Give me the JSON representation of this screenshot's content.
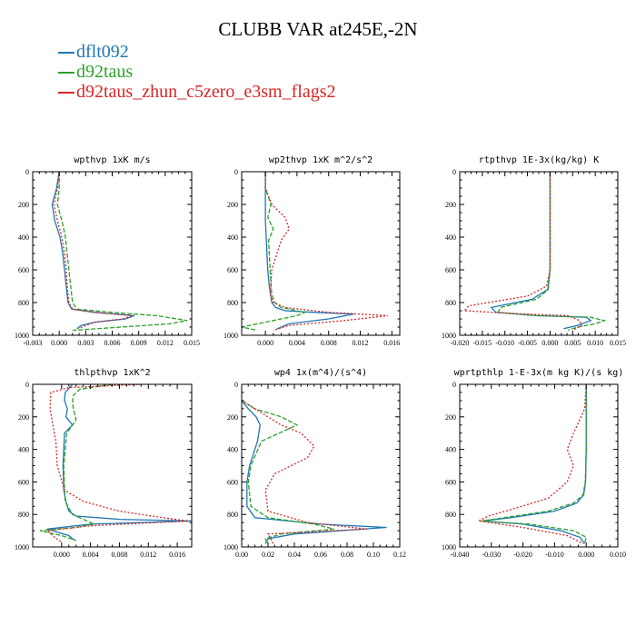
{
  "title": "CLUBB VAR at245E,-2N",
  "legend": [
    {
      "name": "dflt092",
      "color": "#1f77b4"
    },
    {
      "name": "d92taus",
      "color": "#2ca02c"
    },
    {
      "name": "d92taus_zhun_c5zero_e3sm_flags2",
      "color": "#d62728"
    }
  ],
  "series_styles": [
    {
      "name": "dflt092",
      "color": "#1f77b4",
      "dash": "solid"
    },
    {
      "name": "d92taus",
      "color": "#2ca02c",
      "dash": "dashed"
    },
    {
      "name": "d92taus_zhun_c5zero_e3sm_flags2",
      "color": "#d62728",
      "dash": "dotted"
    }
  ],
  "chart_data": [
    {
      "type": "line",
      "title": "wpthvp  1xK m/s",
      "xlim": [
        -0.003,
        0.015
      ],
      "xticks": [
        -0.003,
        0.0,
        0.003,
        0.006,
        0.009,
        0.012,
        0.015
      ],
      "xtick_labels": [
        "-0.003",
        "0.000",
        "0.003",
        "0.006",
        "0.009",
        "0.012",
        "0.015"
      ],
      "ylim": [
        0,
        1000
      ],
      "yticks": [
        0,
        200,
        400,
        600,
        800,
        1000
      ],
      "ytick_labels": [
        "0",
        "200",
        "400",
        "600",
        "800",
        "1000"
      ],
      "series": [
        {
          "x": [
            0.0,
            -0.0003,
            -0.0008,
            -0.0005,
            0.0001,
            0.0004,
            0.0006,
            0.0008,
            0.001,
            0.0014,
            0.004,
            0.0085,
            0.0075,
            0.004,
            0.0025,
            0.002
          ],
          "y": [
            0,
            100,
            200,
            300,
            400,
            500,
            600,
            700,
            800,
            840,
            860,
            880,
            900,
            920,
            940,
            960
          ]
        },
        {
          "x": [
            0.0,
            0.0,
            -0.0002,
            0.0003,
            0.0007,
            0.0009,
            0.0011,
            0.0013,
            0.0015,
            0.002,
            0.006,
            0.011,
            0.0145,
            0.0125,
            0.007,
            0.0015
          ],
          "y": [
            0,
            100,
            200,
            300,
            400,
            500,
            600,
            700,
            800,
            840,
            860,
            880,
            910,
            930,
            950,
            970
          ]
        },
        {
          "x": [
            0.0,
            -0.0002,
            -0.0006,
            -0.0002,
            0.0003,
            0.0006,
            0.0008,
            0.0009,
            0.0011,
            0.0015,
            0.004,
            0.0082,
            0.0072,
            0.004,
            0.003,
            0.0022
          ],
          "y": [
            0,
            100,
            200,
            300,
            400,
            500,
            600,
            700,
            800,
            840,
            860,
            880,
            900,
            920,
            940,
            960
          ]
        }
      ]
    },
    {
      "type": "line",
      "title": "wp2thvp  1xK m^2/s^2",
      "xlim": [
        -0.003,
        0.017
      ],
      "xticks": [
        0.0,
        0.004,
        0.008,
        0.012,
        0.016
      ],
      "xtick_labels": [
        "0.000",
        "0.004",
        "0.008",
        "0.012",
        "0.016"
      ],
      "ylim": [
        0,
        1000
      ],
      "yticks": [
        0,
        200,
        400,
        600,
        800,
        1000
      ],
      "ytick_labels": [
        "0",
        "200",
        "400",
        "600",
        "800",
        "1000"
      ],
      "series": [
        {
          "x": [
            0.0,
            0.0,
            0.0,
            0.0001,
            0.0002,
            0.0003,
            0.0005,
            0.0008,
            0.0013,
            0.0025,
            0.0062,
            0.0112,
            0.008,
            0.003,
            0.0015
          ],
          "y": [
            0,
            100,
            300,
            400,
            500,
            600,
            700,
            800,
            830,
            850,
            860,
            870,
            900,
            930,
            960
          ]
        },
        {
          "x": [
            0.0,
            0.0,
            0.0007,
            0.0003,
            0.001,
            0.0004,
            0.0006,
            0.0008,
            0.0012,
            0.002,
            0.005,
            0.004,
            0.0,
            -0.003,
            -0.001
          ],
          "y": [
            0,
            100,
            200,
            280,
            350,
            420,
            600,
            750,
            800,
            830,
            860,
            880,
            920,
            950,
            970
          ]
        },
        {
          "x": [
            0.0,
            0.0,
            0.0008,
            0.0025,
            0.003,
            0.002,
            0.0008,
            0.0006,
            0.001,
            0.0025,
            0.008,
            0.0155,
            0.01,
            0.003,
            0.001
          ],
          "y": [
            0,
            100,
            200,
            280,
            350,
            420,
            600,
            750,
            800,
            830,
            860,
            880,
            910,
            940,
            970
          ]
        }
      ]
    },
    {
      "type": "line",
      "title": "rtpthvp  1E-3x(kg/kg) K",
      "xlim": [
        -0.02,
        0.015
      ],
      "xticks": [
        -0.02,
        -0.015,
        -0.01,
        -0.005,
        0.0,
        0.005,
        0.01,
        0.015
      ],
      "xtick_labels": [
        "-0.020",
        "-0.015",
        "-0.010",
        "-0.005",
        "0.000",
        "0.005",
        "0.010",
        "0.015"
      ],
      "ylim": [
        0,
        1000
      ],
      "yticks": [
        0,
        200,
        400,
        600,
        800,
        1000
      ],
      "ytick_labels": [
        "0",
        "200",
        "400",
        "600",
        "800",
        "1000"
      ],
      "series": [
        {
          "x": [
            0.0,
            0.0,
            0.0,
            -0.0005,
            -0.004,
            -0.013,
            -0.012,
            -0.003,
            0.008,
            0.009,
            0.006,
            0.003
          ],
          "y": [
            0,
            200,
            600,
            720,
            780,
            830,
            860,
            880,
            890,
            910,
            940,
            960
          ]
        },
        {
          "x": [
            0.0,
            0.0,
            0.0,
            -0.0004,
            -0.003,
            -0.011,
            -0.0115,
            -0.003,
            0.009,
            0.012,
            0.01,
            0.006,
            0.004
          ],
          "y": [
            0,
            200,
            600,
            720,
            780,
            830,
            860,
            880,
            890,
            910,
            930,
            950,
            970
          ]
        },
        {
          "x": [
            0.0,
            0.0,
            0.0,
            -0.0008,
            -0.005,
            -0.018,
            -0.019,
            -0.006,
            0.004,
            0.0065,
            0.007,
            0.005
          ],
          "y": [
            0,
            200,
            600,
            700,
            760,
            820,
            850,
            870,
            880,
            910,
            940,
            970
          ]
        }
      ]
    },
    {
      "type": "line",
      "title": "thlpthvp  1xK^2",
      "xlim": [
        -0.004,
        0.018
      ],
      "xticks": [
        0.0,
        0.004,
        0.008,
        0.012,
        0.016
      ],
      "xtick_labels": [
        "0.000",
        "0.004",
        "0.008",
        "0.012",
        "0.016"
      ],
      "ylim": [
        0,
        1000
      ],
      "yticks": [
        0,
        200,
        400,
        600,
        800,
        1000
      ],
      "ytick_labels": [
        "0",
        "200",
        "400",
        "600",
        "800",
        "1000"
      ],
      "series": [
        {
          "x": [
            0.0015,
            0.0005,
            0.0004,
            0.0008,
            0.0006,
            0.0015,
            0.0004,
            0.0002,
            0.0003,
            0.0006,
            0.001,
            0.002,
            0.008,
            0.018,
            0.004,
            -0.002,
            0.001,
            0.0018
          ],
          "y": [
            0,
            50,
            100,
            150,
            200,
            250,
            300,
            500,
            650,
            720,
            780,
            810,
            830,
            840,
            860,
            890,
            930,
            960
          ]
        },
        {
          "x": [
            0.007,
            0.0025,
            0.0016,
            0.0015,
            0.0018,
            0.002,
            0.0007,
            0.0003,
            0.0004,
            0.0005,
            0.0015,
            0.0045,
            0.002,
            -0.003,
            0.0,
            0.002
          ],
          "y": [
            0,
            30,
            70,
            120,
            180,
            220,
            300,
            500,
            650,
            720,
            800,
            860,
            880,
            900,
            930,
            960
          ]
        },
        {
          "x": [
            0.011,
            0.001,
            -0.0015,
            -0.0016,
            -0.0012,
            -0.0008,
            -0.0006,
            0.0004,
            0.003,
            0.008,
            0.014,
            0.0175,
            0.004,
            -0.002,
            -0.001,
            0.0
          ],
          "y": [
            0,
            20,
            50,
            150,
            250,
            350,
            500,
            650,
            720,
            780,
            820,
            840,
            870,
            900,
            940,
            970
          ]
        }
      ]
    },
    {
      "type": "line",
      "title": "wp4  1x(m^4)/(s^4)",
      "xlim": [
        0.0,
        0.12
      ],
      "xticks": [
        0.0,
        0.02,
        0.04,
        0.06,
        0.08,
        0.1,
        0.12
      ],
      "xtick_labels": [
        "0.00",
        "0.02",
        "0.04",
        "0.06",
        "0.08",
        "0.10",
        "0.12"
      ],
      "ylim": [
        0,
        1000
      ],
      "yticks": [
        0,
        200,
        400,
        600,
        800,
        1000
      ],
      "ytick_labels": [
        "0",
        "200",
        "400",
        "600",
        "800",
        "1000"
      ],
      "series": [
        {
          "x": [
            0.0,
            0.005,
            0.011,
            0.014,
            0.012,
            0.006,
            0.004,
            0.004,
            0.01,
            0.06,
            0.11,
            0.04,
            0.02,
            0.018
          ],
          "y": [
            100,
            150,
            200,
            250,
            350,
            500,
            600,
            750,
            820,
            860,
            880,
            920,
            950,
            980
          ]
        },
        {
          "x": [
            0.0,
            0.01,
            0.03,
            0.042,
            0.015,
            0.007,
            0.005,
            0.007,
            0.02,
            0.055,
            0.07,
            0.03,
            0.018,
            0.02
          ],
          "y": [
            100,
            150,
            200,
            250,
            350,
            500,
            600,
            750,
            820,
            860,
            890,
            920,
            950,
            980
          ]
        },
        {
          "x": [
            0.0,
            0.01,
            0.02,
            0.03,
            0.045,
            0.055,
            0.05,
            0.025,
            0.018,
            0.02,
            0.05,
            0.095,
            0.02,
            0.022,
            0.024
          ],
          "y": [
            100,
            150,
            200,
            250,
            300,
            380,
            450,
            550,
            650,
            780,
            850,
            890,
            920,
            950,
            980
          ]
        }
      ]
    },
    {
      "type": "line",
      "title": "wprtpthlp  1-E-3x(m kg K)/(s kg)",
      "xlim": [
        -0.04,
        0.01
      ],
      "xticks": [
        -0.04,
        -0.03,
        -0.02,
        -0.01,
        0.0,
        0.01
      ],
      "xtick_labels": [
        "-0.040",
        "-0.030",
        "-0.020",
        "-0.010",
        "0.000",
        "0.010"
      ],
      "ylim": [
        0,
        1000
      ],
      "yticks": [
        0,
        200,
        400,
        600,
        800,
        1000
      ],
      "ytick_labels": [
        "0",
        "200",
        "400",
        "600",
        "800",
        "1000"
      ],
      "series": [
        {
          "x": [
            0.0,
            0.0,
            -0.0002,
            -0.0008,
            -0.003,
            -0.01,
            -0.024,
            -0.033,
            -0.02,
            -0.008,
            -0.002,
            -0.0005
          ],
          "y": [
            0,
            400,
            600,
            680,
            730,
            780,
            820,
            840,
            860,
            900,
            940,
            980
          ]
        },
        {
          "x": [
            0.0,
            0.0,
            -0.0003,
            -0.001,
            -0.004,
            -0.012,
            -0.026,
            -0.033,
            -0.018,
            -0.004,
            0.0,
            -0.0005
          ],
          "y": [
            0,
            400,
            600,
            680,
            730,
            780,
            820,
            840,
            860,
            900,
            940,
            980
          ]
        },
        {
          "x": [
            0.0,
            -0.0005,
            -0.004,
            -0.006,
            -0.004,
            -0.006,
            -0.012,
            -0.022,
            -0.031,
            -0.034,
            -0.02,
            -0.006,
            -0.001
          ],
          "y": [
            0,
            150,
            300,
            400,
            500,
            600,
            700,
            760,
            810,
            840,
            880,
            930,
            980
          ]
        }
      ]
    }
  ]
}
